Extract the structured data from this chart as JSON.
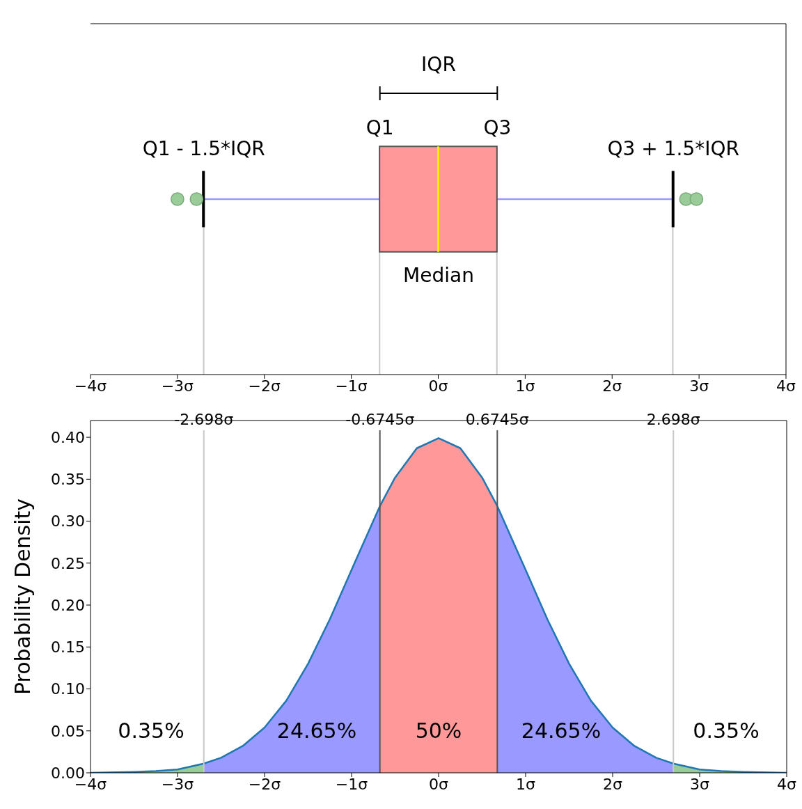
{
  "chart_data": [
    {
      "type": "box",
      "orientation": "horizontal",
      "categories": [
        null
      ],
      "series": [
        {
          "color": "#ff9999",
          "boxes": [
            {
              "low": -2.698,
              "q1": -0.6745,
              "median": 0,
              "q3": 0.6745,
              "high": 2.698,
              "outliers": [
                -3.0,
                -2.78,
                2.85,
                2.97
              ]
            }
          ]
        }
      ],
      "xlim": [
        -4,
        4
      ],
      "xticks": [
        {
          "value": -4,
          "label": "−4σ"
        },
        {
          "value": -3,
          "label": "−3σ"
        },
        {
          "value": -2,
          "label": "−2σ"
        },
        {
          "value": -1,
          "label": "−1σ"
        },
        {
          "value": 0,
          "label": "0σ"
        },
        {
          "value": 1,
          "label": "1σ"
        },
        {
          "value": 2,
          "label": "2σ"
        },
        {
          "value": 3,
          "label": "3σ"
        },
        {
          "value": 4,
          "label": "4σ"
        }
      ],
      "tick_labels": "x",
      "annotations": [
        "IQR",
        "Q1",
        "Q3",
        "Q1 - 1.5*IQR",
        "Q3 + 1.5*IQR",
        "Median"
      ],
      "ref_lines": [
        {
          "axis": "x",
          "value": -2.698,
          "color": "#c8c8c8"
        },
        {
          "axis": "x",
          "value": -0.6745,
          "color": "#c8c8c8"
        },
        {
          "axis": "x",
          "value": 0.6745,
          "color": "#c8c8c8"
        },
        {
          "axis": "x",
          "value": 2.698,
          "color": "#c8c8c8"
        }
      ]
    },
    {
      "type": "area",
      "ylabel": "Probability Density",
      "series": [
        {
          "color": "#99cc99",
          "x": [
            -4,
            -3.5,
            -3.25,
            -3,
            -2.698,
            0,
            2.698,
            3,
            3.25,
            3.5,
            4
          ],
          "values": [
            0.0,
            0.001,
            0.002,
            0.004,
            0.011,
            null,
            0.011,
            0.004,
            0.002,
            0.001,
            0.0
          ]
        },
        {
          "color": "#9999ff",
          "x": [
            -2.698,
            -2.5,
            -2.25,
            -2,
            -1.75,
            -1.5,
            -1.25,
            -1,
            -0.6745,
            0,
            0.6745,
            1,
            1.25,
            1.5,
            1.75,
            2,
            2.25,
            2.5,
            2.698
          ],
          "values": [
            0.011,
            0.018,
            0.032,
            0.054,
            0.086,
            0.13,
            0.183,
            0.242,
            0.318,
            null,
            0.318,
            0.242,
            0.183,
            0.13,
            0.086,
            0.054,
            0.032,
            0.018,
            0.011
          ]
        },
        {
          "color": "#ff9999",
          "x": [
            -0.6745,
            -0.5,
            -0.25,
            0,
            0.25,
            0.5,
            0.6745
          ],
          "values": [
            0.318,
            0.352,
            0.387,
            0.399,
            0.387,
            0.352,
            0.318
          ]
        },
        {
          "type": "line",
          "color": "#1f77b4",
          "x": [
            -4,
            -3.5,
            -3.25,
            -3,
            -2.698,
            -2.5,
            -2.25,
            -2,
            -1.75,
            -1.5,
            -1.25,
            -1,
            -0.6745,
            -0.5,
            -0.25,
            0,
            0.25,
            0.5,
            0.6745,
            1,
            1.25,
            1.5,
            1.75,
            2,
            2.25,
            2.5,
            2.698,
            3,
            3.25,
            3.5,
            4
          ],
          "values": [
            0.0,
            0.001,
            0.002,
            0.004,
            0.011,
            0.018,
            0.032,
            0.054,
            0.086,
            0.13,
            0.183,
            0.242,
            0.318,
            0.352,
            0.387,
            0.399,
            0.387,
            0.352,
            0.318,
            0.242,
            0.183,
            0.13,
            0.086,
            0.054,
            0.032,
            0.018,
            0.011,
            0.004,
            0.002,
            0.001,
            0.0
          ]
        }
      ],
      "xlim": [
        -4,
        4
      ],
      "xticks": [
        {
          "value": -4,
          "label": "−4σ"
        },
        {
          "value": -3,
          "label": "−3σ"
        },
        {
          "value": -2,
          "label": "−2σ"
        },
        {
          "value": -1,
          "label": "−1σ"
        },
        {
          "value": 0,
          "label": "0σ"
        },
        {
          "value": 1,
          "label": "1σ"
        },
        {
          "value": 2,
          "label": "2σ"
        },
        {
          "value": 3,
          "label": "3σ"
        },
        {
          "value": 4,
          "label": "4σ"
        }
      ],
      "ylim": [
        0,
        0.42
      ],
      "yticks": [
        {
          "value": 0,
          "label": "0.00"
        },
        {
          "value": 0.05,
          "label": "0.05"
        },
        {
          "value": 0.1,
          "label": "0.10"
        },
        {
          "value": 0.15,
          "label": "0.15"
        },
        {
          "value": 0.2,
          "label": "0.20"
        },
        {
          "value": 0.25,
          "label": "0.25"
        },
        {
          "value": 0.3,
          "label": "0.30"
        },
        {
          "value": 0.35,
          "label": "0.35"
        },
        {
          "value": 0.4,
          "label": "0.40"
        }
      ],
      "ref_lines": [
        {
          "axis": "x",
          "value": -2.698,
          "label": "-2.698σ",
          "color": "#c8c8c8"
        },
        {
          "axis": "x",
          "value": -0.6745,
          "label": "-0.6745σ",
          "color": "#555555"
        },
        {
          "axis": "x",
          "value": 0.6745,
          "label": "0.6745σ",
          "color": "#555555"
        },
        {
          "axis": "x",
          "value": 2.698,
          "label": "2.698σ",
          "color": "#c8c8c8"
        }
      ],
      "annotations": [
        "0.35%",
        "24.65%",
        "50%",
        "24.65%",
        "0.35%"
      ]
    }
  ]
}
